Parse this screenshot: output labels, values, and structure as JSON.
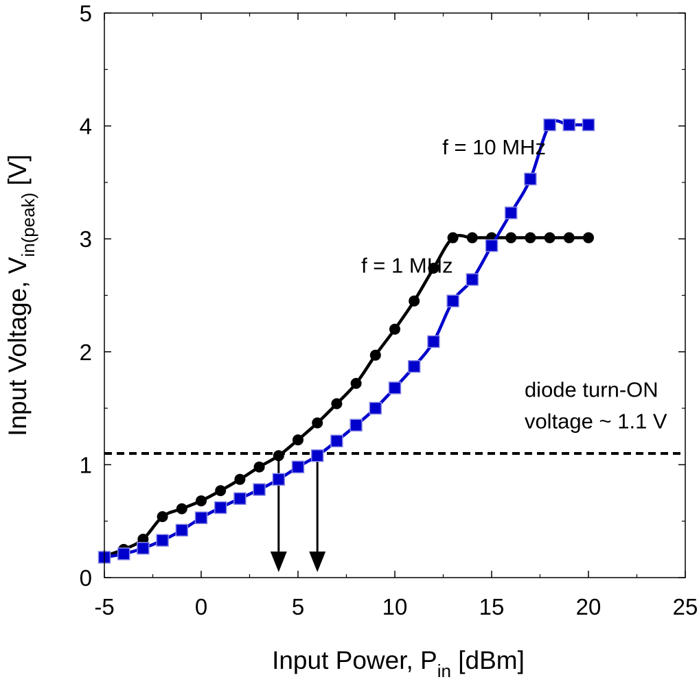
{
  "chart_data": {
    "type": "line",
    "title": "",
    "xlabel": "Input Power, P",
    "xlabel_sub": "in",
    "xlabel_unit": " [dBm]",
    "ylabel": "Input Voltage, V",
    "ylabel_sub": "in(peak)",
    "ylabel_unit": " [V]",
    "xlim": [
      -5,
      25
    ],
    "ylim": [
      0,
      5
    ],
    "xticks": [
      -5,
      0,
      5,
      10,
      15,
      20,
      25
    ],
    "yticks": [
      0,
      1,
      2,
      3,
      4,
      5
    ],
    "x_tick_labels": [
      "-5",
      "0",
      "5",
      "10",
      "15",
      "20",
      "25"
    ],
    "y_tick_labels": [
      "0",
      "1",
      "2",
      "3",
      "4",
      "5"
    ],
    "grid": false,
    "series": [
      {
        "name": "f = 1 MHz",
        "marker": "circle",
        "color": "#000000",
        "x": [
          -5,
          -4,
          -3,
          -2,
          -1,
          0,
          1,
          2,
          3,
          4,
          5,
          6,
          7,
          8,
          9,
          10,
          11,
          12,
          13,
          14,
          15,
          16,
          17,
          18,
          19,
          20
        ],
        "y": [
          0.19,
          0.25,
          0.34,
          0.54,
          0.61,
          0.68,
          0.77,
          0.87,
          0.98,
          1.08,
          1.22,
          1.37,
          1.54,
          1.72,
          1.97,
          2.2,
          2.45,
          2.74,
          3.01,
          3.01,
          3.01,
          3.01,
          3.01,
          3.01,
          3.01,
          3.01
        ]
      },
      {
        "name": "f = 10 MHz",
        "marker": "square",
        "color": "#0000cc",
        "x": [
          -5,
          -4,
          -3,
          -2,
          -1,
          0,
          1,
          2,
          3,
          4,
          5,
          6,
          7,
          8,
          9,
          10,
          11,
          12,
          13,
          14,
          15,
          16,
          17,
          18,
          19,
          20
        ],
        "y": [
          0.18,
          0.21,
          0.26,
          0.33,
          0.42,
          0.53,
          0.62,
          0.7,
          0.78,
          0.87,
          0.98,
          1.08,
          1.21,
          1.35,
          1.5,
          1.68,
          1.87,
          2.09,
          2.45,
          2.64,
          2.94,
          3.23,
          3.53,
          4.01,
          4.01,
          4.01
        ]
      }
    ],
    "reference_line": {
      "y": 1.1,
      "style": "dashed",
      "color": "#000000"
    },
    "arrows": [
      {
        "x": 4,
        "from_y": 1.1,
        "to_y": 0.0
      },
      {
        "x": 6,
        "from_y": 1.1,
        "to_y": 0.0
      }
    ],
    "annotations": {
      "label_10mhz": {
        "text": "f = 10 MHz",
        "x": 17.8,
        "y": 3.75
      },
      "label_1mhz": {
        "text": "f = 1 MHz",
        "x": 13.0,
        "y": 2.7
      },
      "diode_line1": {
        "text": "diode turn-ON",
        "x": 16.7,
        "y": 1.6
      },
      "diode_line2": {
        "text": "voltage ~ 1.1 V",
        "x": 16.7,
        "y": 1.32
      }
    }
  }
}
